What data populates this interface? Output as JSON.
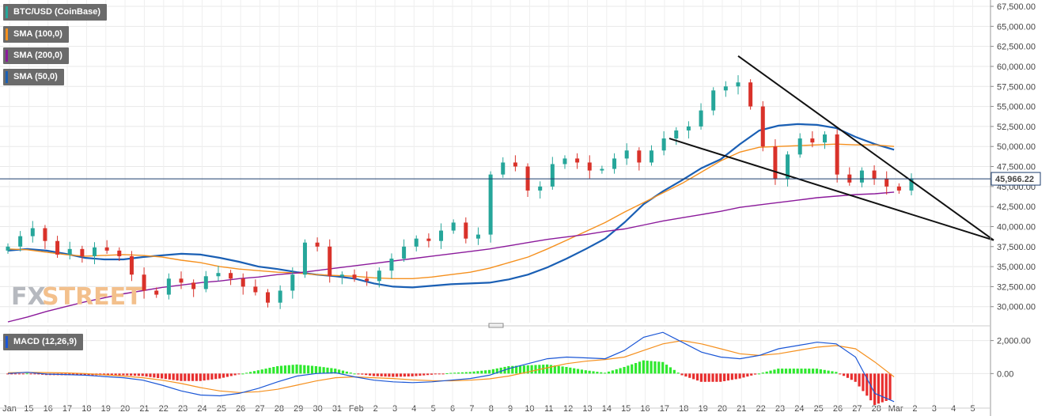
{
  "legend_main": {
    "instrument": "BTC/USD (CoinBase)",
    "sma100": "SMA (100,0)",
    "sma200": "SMA (200,0)",
    "sma50": "SMA (50,0)"
  },
  "legend_macd": {
    "label": "MACD (12,26,9)"
  },
  "watermark": {
    "fx": "FX",
    "street": "STREET"
  },
  "price_badge": "45,966.22",
  "colors": {
    "bull": "#26a69a",
    "bear": "#d9322a",
    "sma50": "#1a5fb4",
    "sma100": "#f5901e",
    "sma200": "#8b1a9b",
    "macd_line": "#1a56d6",
    "signal_line": "#f5901e",
    "hist_pos": "#2ee82e",
    "hist_neg": "#e82e2e",
    "trendline": "#111111"
  },
  "chart_data": {
    "type": "candlestick",
    "title": "BTC/USD (CoinBase)",
    "ylim": [
      28000,
      67500
    ],
    "yticks": [
      "67,500.00",
      "65,000.00",
      "62,500.00",
      "60,000.00",
      "57,500.00",
      "55,000.00",
      "52,500.00",
      "50,000.00",
      "47,500.00",
      "45,000.00",
      "42,500.00",
      "40,000.00",
      "37,500.00",
      "35,000.00",
      "32,500.00",
      "30,000.00"
    ],
    "xticks": [
      "Jan",
      "15",
      "16",
      "17",
      "18",
      "19",
      "20",
      "21",
      "22",
      "23",
      "24",
      "25",
      "26",
      "27",
      "28",
      "29",
      "30",
      "31",
      "Feb",
      "2",
      "3",
      "4",
      "5",
      "6",
      "7",
      "8",
      "9",
      "10",
      "11",
      "12",
      "13",
      "14",
      "15",
      "16",
      "17",
      "18",
      "19",
      "20",
      "21",
      "22",
      "23",
      "24",
      "25",
      "26",
      "27",
      "28",
      "Mar",
      "2",
      "3",
      "4",
      "5"
    ],
    "last_price": 45966.22,
    "series": [
      {
        "name": "SMA (50,0)",
        "values": [
          37000,
          37200,
          37000,
          36600,
          36100,
          35900,
          35900,
          36200,
          36400,
          36600,
          36500,
          36100,
          35600,
          35000,
          34700,
          34300,
          34000,
          33800,
          33500,
          32900,
          32500,
          32400,
          32600,
          32800,
          32900,
          33000,
          33400,
          34000,
          34900,
          36000,
          37200,
          38500,
          40500,
          42800,
          44400,
          45800,
          47300,
          48400,
          50300,
          52000,
          52600,
          52800,
          52700,
          52300,
          51200,
          50300,
          49600
        ]
      },
      {
        "name": "SMA (100,0)",
        "values": [
          37200,
          37100,
          36800,
          36500,
          36300,
          36400,
          36500,
          36400,
          36200,
          35800,
          35500,
          35000,
          34700,
          34500,
          34300,
          34200,
          34000,
          33900,
          33800,
          33600,
          33500,
          33500,
          33700,
          34000,
          34300,
          34800,
          35500,
          36200,
          37200,
          38300,
          39400,
          40500,
          41800,
          43000,
          44200,
          45400,
          46800,
          48200,
          49300,
          49900,
          50000,
          50100,
          50200,
          50300,
          50200,
          50200,
          50000
        ]
      },
      {
        "name": "SMA (200,0)",
        "values": [
          28100,
          28700,
          29400,
          30000,
          30600,
          31100,
          31600,
          32000,
          32400,
          32700,
          33000,
          33200,
          33500,
          33700,
          34000,
          34200,
          34500,
          34800,
          35100,
          35400,
          35700,
          36000,
          36300,
          36600,
          36900,
          37200,
          37600,
          38000,
          38400,
          38700,
          39000,
          39400,
          39700,
          40200,
          40700,
          41100,
          41500,
          41900,
          42400,
          42700,
          43000,
          43300,
          43600,
          43800,
          44000,
          44100,
          44300
        ]
      },
      {
        "name": "MACD (12,26,9)",
        "values": [
          0,
          80,
          -30,
          -60,
          -100,
          -180,
          -250,
          -400,
          -700,
          -1050,
          -1300,
          -1350,
          -1200,
          -900,
          -500,
          -150,
          0,
          50,
          -200,
          -400,
          -500,
          -550,
          -500,
          -400,
          -300,
          -100,
          300,
          600,
          900,
          1000,
          950,
          900,
          1400,
          2200,
          2500,
          1900,
          1300,
          1000,
          900,
          1100,
          1500,
          1700,
          1900,
          1800,
          1000,
          -1200,
          -1700
        ]
      },
      {
        "name": "Signal",
        "values": [
          50,
          70,
          60,
          40,
          0,
          -80,
          -150,
          -250,
          -400,
          -600,
          -850,
          -1050,
          -1150,
          -1100,
          -950,
          -700,
          -450,
          -250,
          -200,
          -250,
          -300,
          -380,
          -430,
          -440,
          -400,
          -320,
          -150,
          100,
          350,
          600,
          750,
          850,
          1000,
          1400,
          1800,
          2000,
          1800,
          1500,
          1200,
          1100,
          1200,
          1400,
          1600,
          1700,
          1500,
          700,
          -200
        ]
      }
    ],
    "macd_ylim": [
      -1900,
      2700
    ],
    "macd_yticks": [
      "2,000.00",
      "0.00"
    ]
  }
}
